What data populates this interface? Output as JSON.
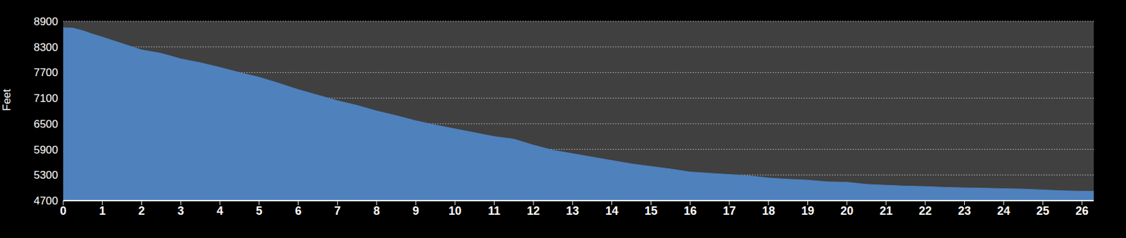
{
  "chart_data": {
    "type": "area",
    "y_label": "Feet",
    "color": "#4f81bd",
    "grid": true,
    "x": [
      0,
      0.25,
      0.5,
      0.75,
      1,
      1.5,
      2,
      2.5,
      3,
      3.5,
      4,
      4.5,
      5,
      5.5,
      6,
      6.5,
      7,
      7.5,
      8,
      8.5,
      9,
      9.5,
      10,
      10.5,
      11,
      11.5,
      12,
      12.5,
      13,
      13.5,
      14,
      14.5,
      15,
      15.5,
      16,
      16.5,
      17,
      17.5,
      18,
      18.5,
      19,
      19.5,
      20,
      20.5,
      21,
      21.5,
      22,
      22.5,
      23,
      23.5,
      24,
      24.5,
      25,
      25.5,
      26,
      26.3
    ],
    "values": [
      8750,
      8740,
      8680,
      8600,
      8530,
      8380,
      8230,
      8150,
      8020,
      7930,
      7820,
      7700,
      7590,
      7450,
      7300,
      7170,
      7040,
      6930,
      6800,
      6690,
      6570,
      6470,
      6380,
      6290,
      6200,
      6140,
      6000,
      5880,
      5800,
      5720,
      5640,
      5560,
      5500,
      5440,
      5370,
      5340,
      5310,
      5280,
      5230,
      5200,
      5180,
      5140,
      5130,
      5080,
      5060,
      5040,
      5030,
      5010,
      5000,
      4990,
      4980,
      4970,
      4950,
      4930,
      4920,
      4920
    ],
    "xlim": [
      0,
      26.3
    ],
    "ylim": [
      4700,
      8900
    ],
    "xticks": [
      0,
      1,
      2,
      3,
      4,
      5,
      6,
      7,
      8,
      9,
      10,
      11,
      12,
      13,
      14,
      15,
      16,
      17,
      18,
      19,
      20,
      21,
      22,
      23,
      24,
      25,
      26
    ],
    "yticks": [
      4700,
      5300,
      5900,
      6500,
      7100,
      7700,
      8300,
      8900
    ]
  }
}
